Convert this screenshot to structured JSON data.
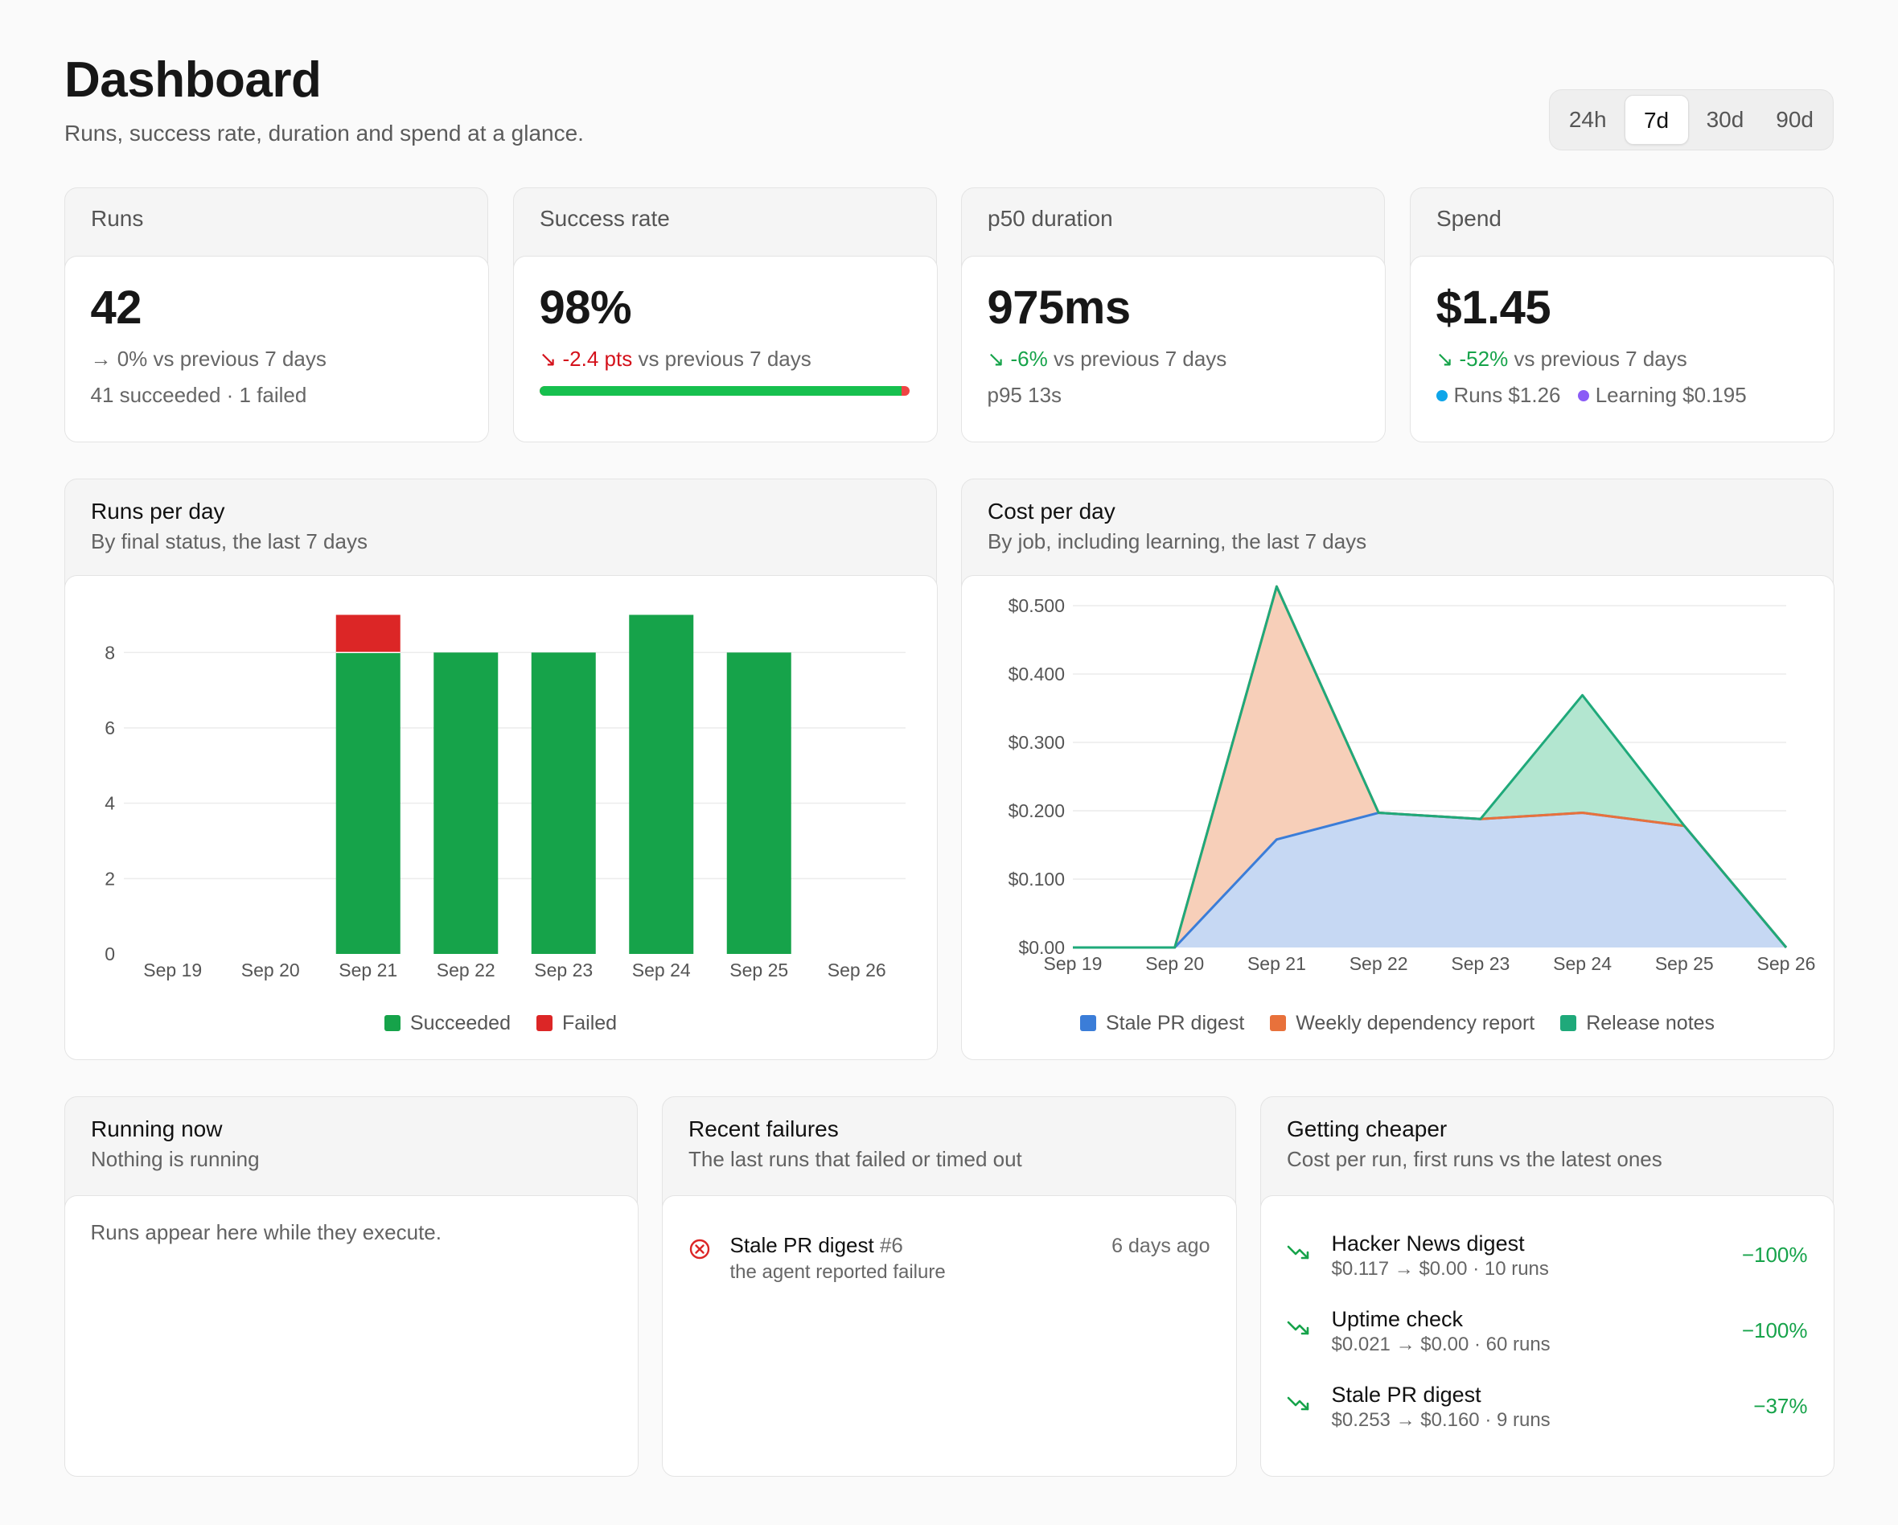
{
  "header": {
    "title": "Dashboard",
    "subtitle": "Runs, success rate, duration and spend at a glance."
  },
  "range": {
    "options": [
      "24h",
      "7d",
      "30d",
      "90d"
    ],
    "selected": "7d"
  },
  "stats": {
    "runs": {
      "label": "Runs",
      "value": "42",
      "delta": "→ 0%",
      "delta_suffix": " vs previous 7 days",
      "extra": "41 succeeded · 1 failed"
    },
    "success": {
      "label": "Success rate",
      "value": "98%",
      "delta": "↘ -2.4 pts",
      "delta_suffix": " vs previous 7 days",
      "success_fraction": 0.98
    },
    "duration": {
      "label": "p50 duration",
      "value": "975ms",
      "delta": "↘ -6%",
      "delta_suffix": " vs previous 7 days",
      "extra": "p95 13s"
    },
    "spend": {
      "label": "Spend",
      "value": "$1.45",
      "delta": "↘ -52%",
      "delta_suffix": " vs previous 7 days",
      "breakdown": [
        {
          "label": "Runs $1.26",
          "color": "#0ea5e9"
        },
        {
          "label": "Learning $0.195",
          "color": "#8b5cf6"
        }
      ]
    }
  },
  "runs_chart": {
    "title": "Runs per day",
    "subtitle": "By final status, the last 7 days"
  },
  "cost_chart": {
    "title": "Cost per day",
    "subtitle": "By job, including learning, the last 7 days"
  },
  "chart_data": [
    {
      "type": "bar",
      "stacked": true,
      "categories": [
        "Sep 19",
        "Sep 20",
        "Sep 21",
        "Sep 22",
        "Sep 23",
        "Sep 24",
        "Sep 25",
        "Sep 26"
      ],
      "series": [
        {
          "name": "Succeeded",
          "color": "#16a34a",
          "values": [
            0,
            0,
            8,
            8,
            8,
            9,
            8,
            0
          ]
        },
        {
          "name": "Failed",
          "color": "#dc2626",
          "values": [
            0,
            0,
            1,
            0,
            0,
            0,
            0,
            0
          ]
        }
      ],
      "yticks": [
        0,
        2,
        4,
        6,
        8
      ],
      "ylim": [
        0,
        9.5
      ],
      "grid": true,
      "legend": "bottom"
    },
    {
      "type": "area",
      "stacked": true,
      "categories": [
        "Sep 19",
        "Sep 20",
        "Sep 21",
        "Sep 22",
        "Sep 23",
        "Sep 24",
        "Sep 25",
        "Sep 26"
      ],
      "series": [
        {
          "name": "Stale PR digest",
          "color": "#3b7dd8",
          "values": [
            0,
            0,
            0.158,
            0.197,
            0.188,
            0.197,
            0.178,
            0
          ]
        },
        {
          "name": "Weekly dependency report",
          "color": "#e8713b",
          "values": [
            0,
            0,
            0.37,
            0,
            0,
            0,
            0,
            0
          ]
        },
        {
          "name": "Release notes",
          "color": "#1fa97a",
          "values": [
            0,
            0,
            0,
            0,
            0,
            0.172,
            0,
            0
          ]
        }
      ],
      "yticks": [
        "$0.00",
        "$0.100",
        "$0.200",
        "$0.300",
        "$0.400",
        "$0.500"
      ],
      "ylim": [
        0,
        0.5
      ],
      "grid": true,
      "legend": "bottom"
    }
  ],
  "running": {
    "title": "Running now",
    "subtitle": "Nothing is running",
    "empty": "Runs appear here while they execute."
  },
  "failures": {
    "title": "Recent failures",
    "subtitle": "The last runs that failed or timed out",
    "items": [
      {
        "name": "Stale PR digest",
        "num": "#6",
        "reason": "the agent reported failure",
        "time": "6 days ago"
      }
    ]
  },
  "cheaper": {
    "title": "Getting cheaper",
    "subtitle": "Cost per run, first runs vs the latest ones",
    "items": [
      {
        "name": "Hacker News digest",
        "detail": "$0.117 → $0.00 · 10 runs",
        "pct": "−100%"
      },
      {
        "name": "Uptime check",
        "detail": "$0.021 → $0.00 · 60 runs",
        "pct": "−100%"
      },
      {
        "name": "Stale PR digest",
        "detail": "$0.253 → $0.160 · 9 runs",
        "pct": "−37%"
      }
    ]
  }
}
